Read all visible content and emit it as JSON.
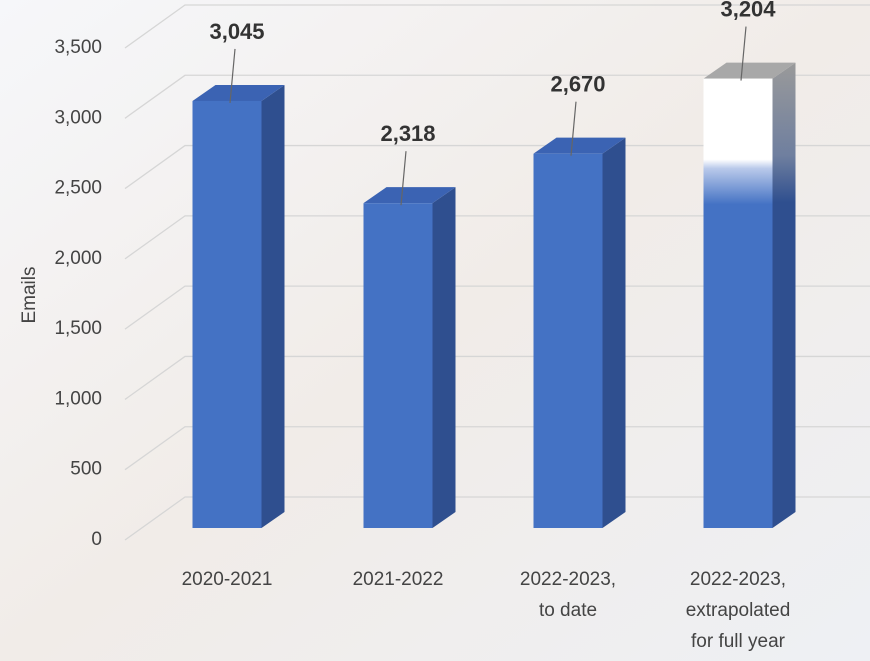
{
  "chart_data": {
    "type": "bar3d",
    "y_label": "Emails",
    "categories": [
      "2020-2021",
      "2021-2022",
      "2022-2023,\nto date",
      "2022-2023,\nextrapolated\nfor full year"
    ],
    "values": [
      3045,
      2318,
      2670,
      3204
    ],
    "value_labels": [
      "3,045",
      "2,318",
      "2,670",
      "3,204"
    ],
    "color": "#4472c4",
    "ylim": [
      0,
      3500
    ],
    "yticks": [
      0,
      {
        "value": 500,
        "label": "500"
      },
      {
        "value": 1000,
        "label": "1,000"
      },
      {
        "value": 1500,
        "label": "1,500"
      },
      {
        "value": 2000,
        "label": "2,000"
      },
      {
        "value": 2500,
        "label": "2,500"
      },
      {
        "value": 3000,
        "label": "3,000"
      },
      {
        "value": 3500,
        "label": "3,500"
      }
    ],
    "grid": true
  }
}
